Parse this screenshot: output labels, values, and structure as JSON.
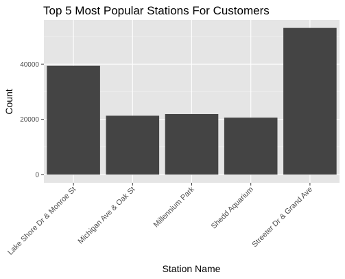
{
  "chart_data": {
    "type": "bar",
    "title": "Top 5 Most Popular Stations For Customers",
    "xlabel": "Station Name",
    "ylabel": "Count",
    "categories": [
      "Lake Shore Dr & Monroe St",
      "Michigan Ave & Oak St",
      "Millennium Park",
      "Shedd Aquarium",
      "Streeter Dr & Grand Ave"
    ],
    "values": [
      39400,
      21300,
      21900,
      20600,
      53100
    ],
    "ylim": [
      -3000,
      56000
    ],
    "yticks": [
      0,
      20000,
      40000
    ],
    "ytick_labels": [
      "0",
      "20000",
      "40000"
    ],
    "grid": true,
    "legend": "none",
    "colors": {
      "panel_background": "#e5e5e5",
      "grid_major": "#ffffff",
      "bar_fill": "#444444",
      "tick_text": "#4d4d4d",
      "tick_mark": "#333333"
    }
  }
}
